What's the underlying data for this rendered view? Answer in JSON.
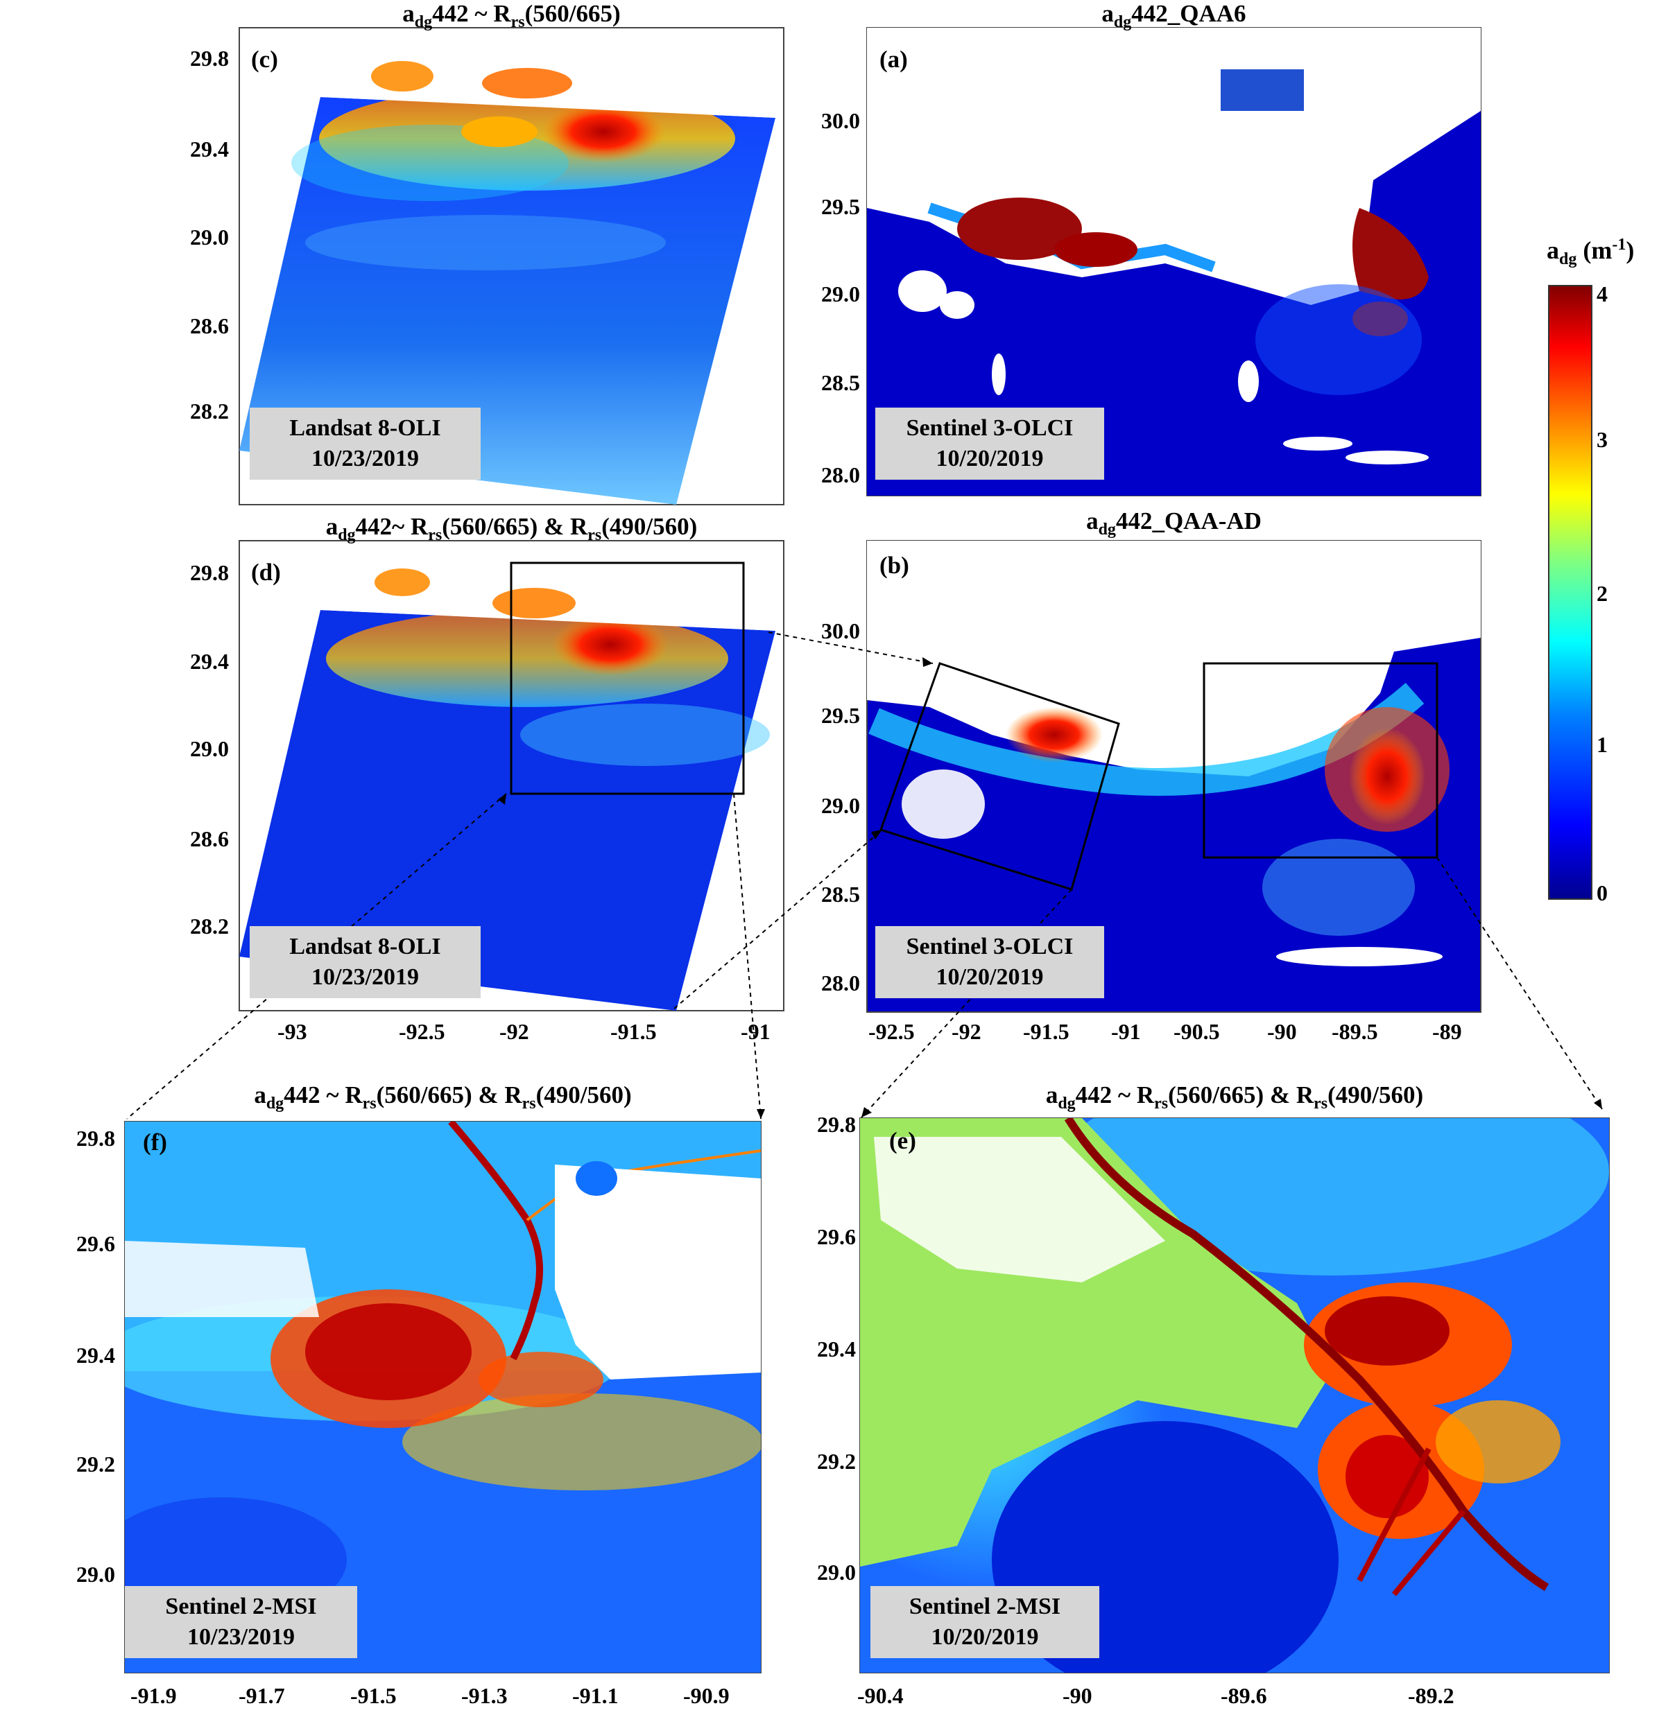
{
  "colorbar": {
    "label_main": "a",
    "label_sub": "dg",
    "label_unit": "(m",
    "label_exp": "-1",
    "label_close": ")",
    "ticks": [
      "4",
      "3",
      "2",
      "1",
      "0"
    ],
    "colors": [
      "#00008f",
      "#0000ff",
      "#0080ff",
      "#00ffff",
      "#80ff80",
      "#ffff00",
      "#ff8000",
      "#ff0000",
      "#800000"
    ]
  },
  "panels": {
    "c": {
      "letter": "(c)",
      "title_html": "a<sub>dg</sub>442 ~ R<sub>rs</sub>(560/665)",
      "sat": "Landsat 8-OLI",
      "date": "10/23/2019",
      "yticks": [
        "29.8",
        "29.4",
        "29.0",
        "28.6",
        "28.2"
      ]
    },
    "a": {
      "letter": "(a)",
      "title_html": "a<sub>dg</sub>442_QAA6",
      "sat": "Sentinel 3-OLCI",
      "date": "10/20/2019",
      "yticks": [
        "30.0",
        "29.5",
        "29.0",
        "28.5",
        "28.0"
      ]
    },
    "d": {
      "letter": "(d)",
      "title_html": "a<sub>dg</sub>442~ R<sub>rs</sub>(560/665) &amp; R<sub>rs</sub>(490/560)",
      "sat": "Landsat 8-OLI",
      "date": "10/23/2019",
      "yticks": [
        "29.8",
        "29.4",
        "29.0",
        "28.6",
        "28.2"
      ],
      "xticks": [
        "-93",
        "-92.5",
        "-92",
        "-91.5",
        "-91"
      ]
    },
    "b": {
      "letter": "(b)",
      "title_html": "a<sub>dg</sub>442_QAA-AD",
      "sat": "Sentinel 3-OLCI",
      "date": "10/20/2019",
      "yticks": [
        "30.0",
        "29.5",
        "29.0",
        "28.5",
        "28.0"
      ],
      "xticks": [
        "-92.5",
        "-92",
        "-91.5",
        "-91",
        "-90.5",
        "-90",
        "-89.5",
        "-89"
      ]
    },
    "f": {
      "letter": "(f)",
      "title_html": "a<sub>dg</sub>442 ~ R<sub>rs</sub>(560/665) &amp; R<sub>rs</sub>(490/560)",
      "sat": "Sentinel 2-MSI",
      "date": "10/23/2019",
      "yticks": [
        "29.8",
        "29.6",
        "29.4",
        "29.2",
        "29.0"
      ],
      "xticks": [
        "-91.9",
        "-91.7",
        "-91.5",
        "-91.3",
        "-91.1",
        "-90.9"
      ]
    },
    "e": {
      "letter": "(e)",
      "title_html": "a<sub>dg</sub>442 ~ R<sub>rs</sub>(560/665) &amp; R<sub>rs</sub>(490/560)",
      "sat": "Sentinel 2-MSI",
      "date": "10/20/2019",
      "yticks": [
        "29.8",
        "29.6",
        "29.4",
        "29.2",
        "29.0"
      ],
      "xticks": [
        "-90.4",
        "-90",
        "-89.6",
        "-89.2"
      ]
    }
  }
}
